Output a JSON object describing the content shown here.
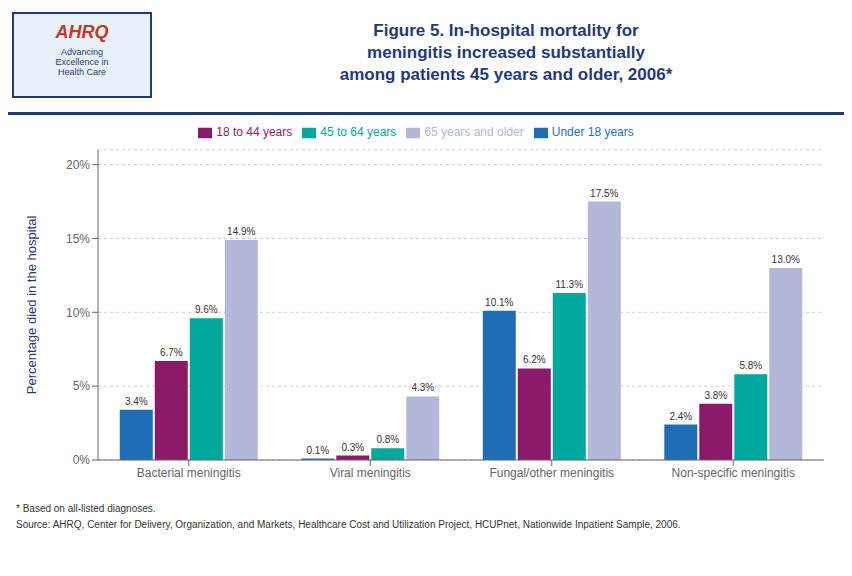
{
  "chart_data": {
    "type": "bar",
    "title": "Figure 5. In-hospital mortality for\nmeningitis increased substantially\namong patients 45 years and older, 2006*",
    "y_label": "Percentage died in the hospital",
    "categories": [
      "Bacterial meningitis",
      "Viral meningitis",
      "Fungal/other meningitis",
      "Non-specific meningitis"
    ],
    "series": [
      {
        "name": "Under 18 years",
        "color": "#1f6eb5",
        "values": [
          3.4,
          0.1,
          10.1,
          2.4
        ],
        "value_labels": [
          "3.4%",
          "0.1%",
          "10.1%",
          "2.4%"
        ]
      },
      {
        "name": "18 to 44 years",
        "color": "#8b1a6b",
        "values": [
          6.7,
          0.3,
          6.2,
          3.8
        ],
        "value_labels": [
          "6.7%",
          "0.3%",
          "6.2%",
          "3.8%"
        ]
      },
      {
        "name": "45 to 64 years",
        "color": "#00a99d",
        "values": [
          9.6,
          0.8,
          11.3,
          5.8
        ],
        "value_labels": [
          "9.6%",
          "0.8%",
          "11.3%",
          "5.8%"
        ]
      },
      {
        "name": "65 years and older",
        "color": "#b3b7d9",
        "values": [
          14.9,
          4.3,
          17.5,
          13.0
        ],
        "value_labels": [
          "14.9%",
          "4.3%",
          "17.5%",
          "13.0%"
        ]
      }
    ],
    "ylim": [
      0,
      21
    ],
    "yticks": [
      {
        "value": 0,
        "label": "0%"
      },
      {
        "value": 5,
        "label": "5%"
      },
      {
        "value": 10,
        "label": "10%"
      },
      {
        "value": 15,
        "label": "15%"
      },
      {
        "value": 20,
        "label": "20%"
      }
    ],
    "grid": true,
    "legend": "top",
    "data_labels": true,
    "annotations": [
      "AHRQ",
      "Advancing\nExcellence in\nHealth Care",
      "* Based on all-listed diagnoses.",
      "Source: AHRQ, Center for Delivery, Organization, and Markets, Healthcare Cost and Utilization Project, HCUPnet, Nationwide Inpatient Sample, 2006."
    ]
  }
}
